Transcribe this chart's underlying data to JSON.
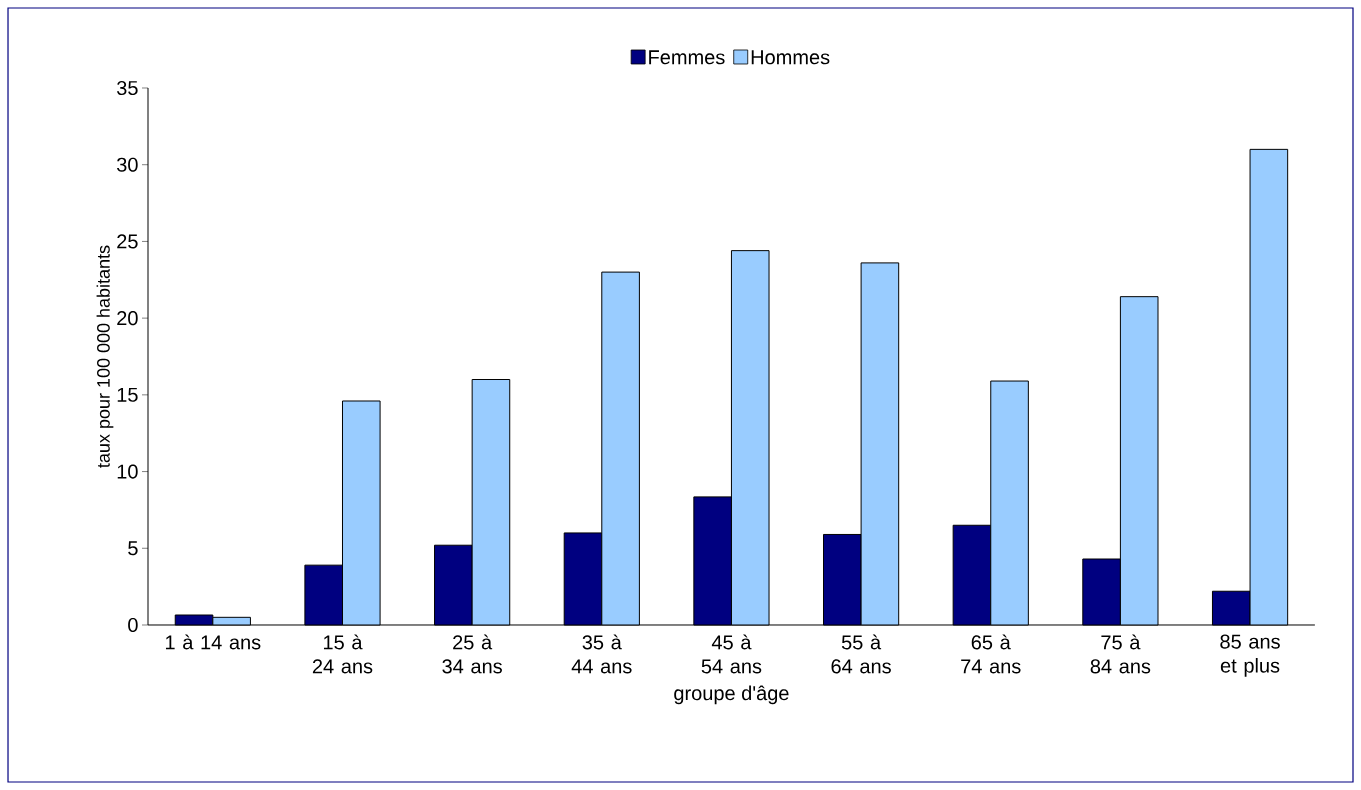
{
  "chart_data": {
    "type": "bar",
    "xlabel": "groupe d'âge",
    "ylabel": "taux pour 100 000 habitants",
    "categories": [
      "1 à 14 ans",
      "15 à 24 ans",
      "25 à 34 ans",
      "35 à 44 ans",
      "45 à 54 ans",
      "55 à 64 ans",
      "65 à 74 ans",
      "75 à 84 ans",
      "85 ans et plus"
    ],
    "series": [
      {
        "name": "Femmes",
        "color": "#000080",
        "values": [
          0.65,
          3.9,
          5.2,
          6.0,
          8.35,
          5.9,
          6.5,
          4.3,
          2.2
        ]
      },
      {
        "name": "Hommes",
        "color": "#99ccff",
        "values": [
          0.5,
          14.6,
          16.0,
          23.0,
          24.4,
          23.6,
          15.9,
          21.4,
          31.0
        ]
      }
    ],
    "ylim": [
      0,
      35
    ],
    "yticks": [
      0,
      5,
      10,
      15,
      20,
      25,
      30,
      35
    ],
    "legend": "top"
  }
}
